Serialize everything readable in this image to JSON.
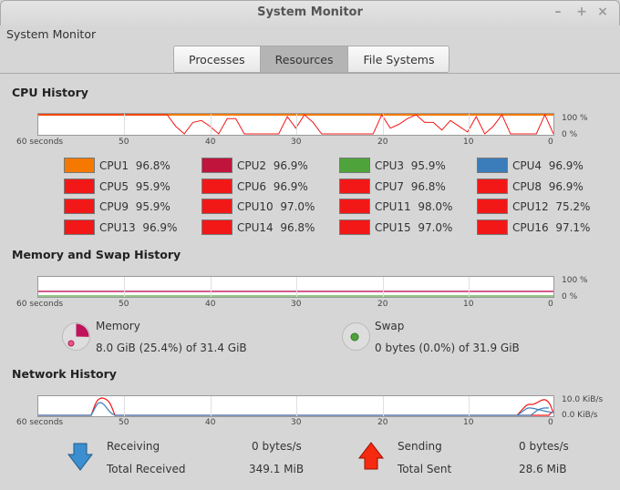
{
  "window": {
    "title": "System Monitor",
    "minimize": "–",
    "maximize": "+",
    "close": "×"
  },
  "app_title": "System Monitor",
  "tabs": [
    {
      "label": "Processes"
    },
    {
      "label": "Resources",
      "active": true
    },
    {
      "label": "File Systems"
    }
  ],
  "axis": {
    "x": [
      "60 seconds",
      "50",
      "40",
      "30",
      "20",
      "10",
      "0"
    ]
  },
  "cpu": {
    "title": "CPU History",
    "y_top": "100 %",
    "y_bottom": "0 %",
    "cpus": [
      {
        "label": "CPU1",
        "value": "96.8%",
        "color": "#f57900"
      },
      {
        "label": "CPU2",
        "value": "96.9%",
        "color": "#c0143c"
      },
      {
        "label": "CPU3",
        "value": "95.9%",
        "color": "#4ea43a"
      },
      {
        "label": "CPU4",
        "value": "96.9%",
        "color": "#3b7dbb"
      },
      {
        "label": "CPU5",
        "value": "95.9%",
        "color": "#f21818"
      },
      {
        "label": "CPU6",
        "value": "96.9%",
        "color": "#f21818"
      },
      {
        "label": "CPU7",
        "value": "96.8%",
        "color": "#f21818"
      },
      {
        "label": "CPU8",
        "value": "96.9%",
        "color": "#f21818"
      },
      {
        "label": "CPU9",
        "value": "95.9%",
        "color": "#f21818"
      },
      {
        "label": "CPU10",
        "value": "97.0%",
        "color": "#f21818"
      },
      {
        "label": "CPU11",
        "value": "98.0%",
        "color": "#f21818"
      },
      {
        "label": "CPU12",
        "value": "75.2%",
        "color": "#f21818"
      },
      {
        "label": "CPU13",
        "value": "96.9%",
        "color": "#f21818"
      },
      {
        "label": "CPU14",
        "value": "96.8%",
        "color": "#f21818"
      },
      {
        "label": "CPU15",
        "value": "97.0%",
        "color": "#f21818"
      },
      {
        "label": "CPU16",
        "value": "97.1%",
        "color": "#f21818"
      }
    ],
    "history_samples": [
      [
        100,
        100,
        100,
        100,
        100,
        100,
        100,
        100,
        100,
        100,
        100,
        100,
        100,
        100,
        100,
        100,
        100,
        100,
        100,
        100,
        100,
        100,
        100,
        100,
        100,
        100,
        100,
        100,
        100,
        100,
        100,
        100,
        100,
        100,
        100,
        100,
        100,
        100,
        100,
        100,
        100,
        100,
        100,
        100,
        100,
        100,
        100,
        100,
        100,
        100,
        100,
        100,
        100,
        100,
        100,
        100,
        100,
        100,
        100,
        100,
        100
      ],
      [
        100,
        100,
        100,
        100,
        100,
        100,
        100,
        100,
        100,
        100,
        100,
        100,
        100,
        100,
        100,
        100,
        40,
        0,
        60,
        70,
        40,
        0,
        80,
        80,
        0,
        0,
        0,
        0,
        0,
        90,
        30,
        100,
        60,
        0,
        0,
        0,
        0,
        0,
        0,
        0,
        100,
        30,
        50,
        80,
        100,
        60,
        60,
        20,
        70,
        40,
        10,
        90,
        0,
        40,
        100,
        0,
        0,
        0,
        0,
        100,
        0
      ]
    ]
  },
  "memory": {
    "title": "Memory and Swap History",
    "y_top": "100 %",
    "y_bottom": "0 %",
    "memory_label": "Memory",
    "memory_value": "8.0 GiB (25.4%) of 31.4 GiB",
    "memory_color": "#c0145a",
    "memory_fraction": 0.254,
    "swap_label": "Swap",
    "swap_value": "0 bytes (0.0%) of 31.9 GiB",
    "swap_color": "#4ea43a",
    "swap_fraction": 0.0
  },
  "network": {
    "title": "Network History",
    "y_top": "10.0 KiB/s",
    "y_bottom": "0.0 KiB/s",
    "receiving_label": "Receiving",
    "receiving_value": "0 bytes/s",
    "total_received_label": "Total Received",
    "total_received_value": "349.1 MiB",
    "sending_label": "Sending",
    "sending_value": "0 bytes/s",
    "total_sent_label": "Total Sent",
    "total_sent_value": "28.6 MiB",
    "receive_color": "#3b7dbb",
    "send_color": "#f21818"
  }
}
